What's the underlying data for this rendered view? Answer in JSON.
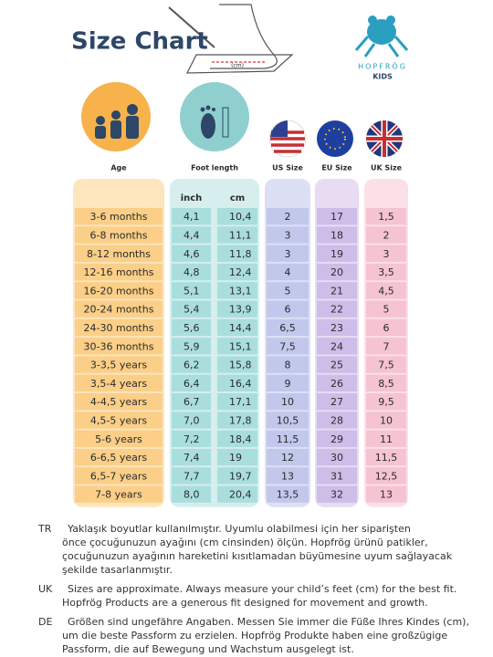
{
  "header": {
    "title": "Size Chart",
    "brand": "HOPFRÖG",
    "brand_sub": "KIDS",
    "tape_label": "(cm)"
  },
  "table": {
    "headers": [
      "Age",
      "Foot length",
      "US Size",
      "EU Size",
      "UK Size"
    ],
    "subheaders": [
      "inch",
      "cm"
    ],
    "rows": [
      [
        "3-6 months",
        "4,1",
        "10,4",
        "2",
        "17",
        "1,5"
      ],
      [
        "6-8 months",
        "4,4",
        "11,1",
        "3",
        "18",
        "2"
      ],
      [
        "8-12 months",
        "4,6",
        "11,8",
        "3",
        "19",
        "3"
      ],
      [
        "12-16 months",
        "4,8",
        "12,4",
        "4",
        "20",
        "3,5"
      ],
      [
        "16-20 months",
        "5,1",
        "13,1",
        "5",
        "21",
        "4,5"
      ],
      [
        "20-24 months",
        "5,4",
        "13,9",
        "6",
        "22",
        "5"
      ],
      [
        "24-30 months",
        "5,6",
        "14,4",
        "6,5",
        "23",
        "6"
      ],
      [
        "30-36 months",
        "5,9",
        "15,1",
        "7,5",
        "24",
        "7"
      ],
      [
        "3-3,5 years",
        "6,2",
        "15,8",
        "8",
        "25",
        "7,5"
      ],
      [
        "3,5-4 years",
        "6,4",
        "16,4",
        "9",
        "26",
        "8,5"
      ],
      [
        "4-4,5 years",
        "6,7",
        "17,1",
        "10",
        "27",
        "9,5"
      ],
      [
        "4,5-5 years",
        "7,0",
        "17,8",
        "10,5",
        "28",
        "10"
      ],
      [
        "5-6 years",
        "7,2",
        "18,4",
        "11,5",
        "29",
        "11"
      ],
      [
        "6-6,5 years",
        "7,4",
        "19",
        "12",
        "30",
        "11,5"
      ],
      [
        "6,5-7 years",
        "7,7",
        "19,7",
        "13",
        "31",
        "12,5"
      ],
      [
        "7-8 years",
        "8,0",
        "20,4",
        "13,5",
        "32",
        "13"
      ]
    ]
  },
  "notes": [
    {
      "code": "TR",
      "lines": [
        "Yaklaşık boyutlar kullanılmıştır. Uyumlu olabilmesi için her siparişten",
        "önce çocuğunuzun ayağını (cm cinsinden) ölçün. Hopfrög ürünü patikler,",
        "çocuğunuzun ayağının hareketini kısıtlamadan büyümesine uyum sağlayacak",
        "şekilde tasarlanmıştır."
      ]
    },
    {
      "code": "UK",
      "lines": [
        "Sizes are approximate. Always measure your child’s feet (cm) for the best fit.",
        "Hopfrög Products are a generous fit designed for movement and growth."
      ]
    },
    {
      "code": "DE",
      "lines": [
        "Größen sind ungefähre Angaben. Messen Sie immer die Füße Ihres Kindes (cm),",
        "um die beste Passform zu erzielen. Hopfrög Produkte haben eine großzügige",
        "Passform, die auf Bewegung und Wachstum ausgelegt ist."
      ]
    }
  ]
}
